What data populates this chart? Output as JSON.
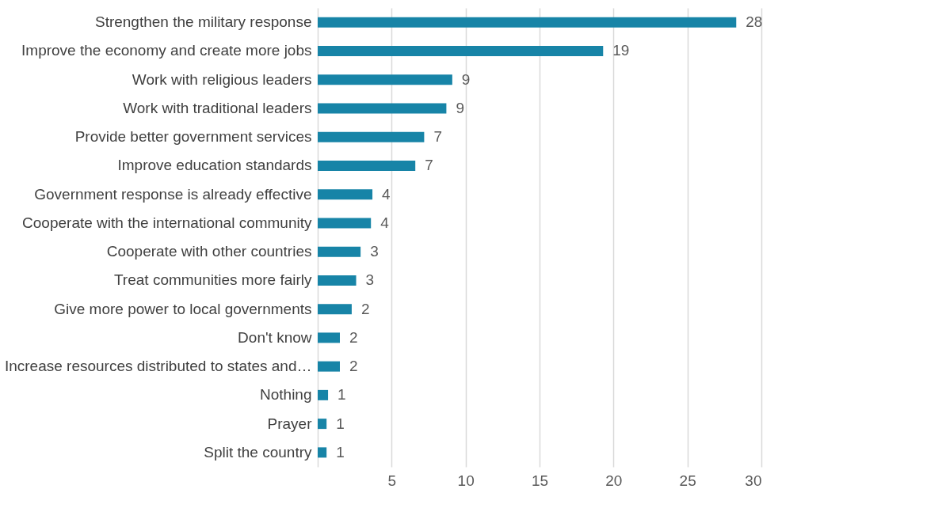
{
  "chart_data": {
    "type": "bar",
    "orientation": "horizontal",
    "categories": [
      "Strengthen the military response",
      "Improve the economy and create more jobs",
      "Work with religious leaders",
      "Work with traditional leaders",
      "Provide better government services",
      "Improve education standards",
      "Government response is already effective",
      "Cooperate with the international community",
      "Cooperate  with other countries",
      "Treat communities more fairly",
      "Give more power to local governments",
      "Don't know",
      "Increase resources distributed to states and…",
      "Nothing",
      "Prayer",
      "Split the country"
    ],
    "values": [
      28.3,
      19.3,
      9.1,
      8.7,
      7.2,
      6.6,
      3.7,
      3.6,
      2.9,
      2.6,
      2.3,
      1.5,
      1.5,
      0.7,
      0.6,
      0.6
    ],
    "value_labels": [
      "28",
      "19",
      "9",
      "9",
      "7",
      "7",
      "4",
      "4",
      "3",
      "3",
      "2",
      "2",
      "2",
      "1",
      "1",
      "1"
    ],
    "color": "#1784a7",
    "xlim": [
      0,
      30
    ],
    "xticks": [
      5,
      10,
      15,
      20,
      25,
      30
    ],
    "grid": "x"
  }
}
